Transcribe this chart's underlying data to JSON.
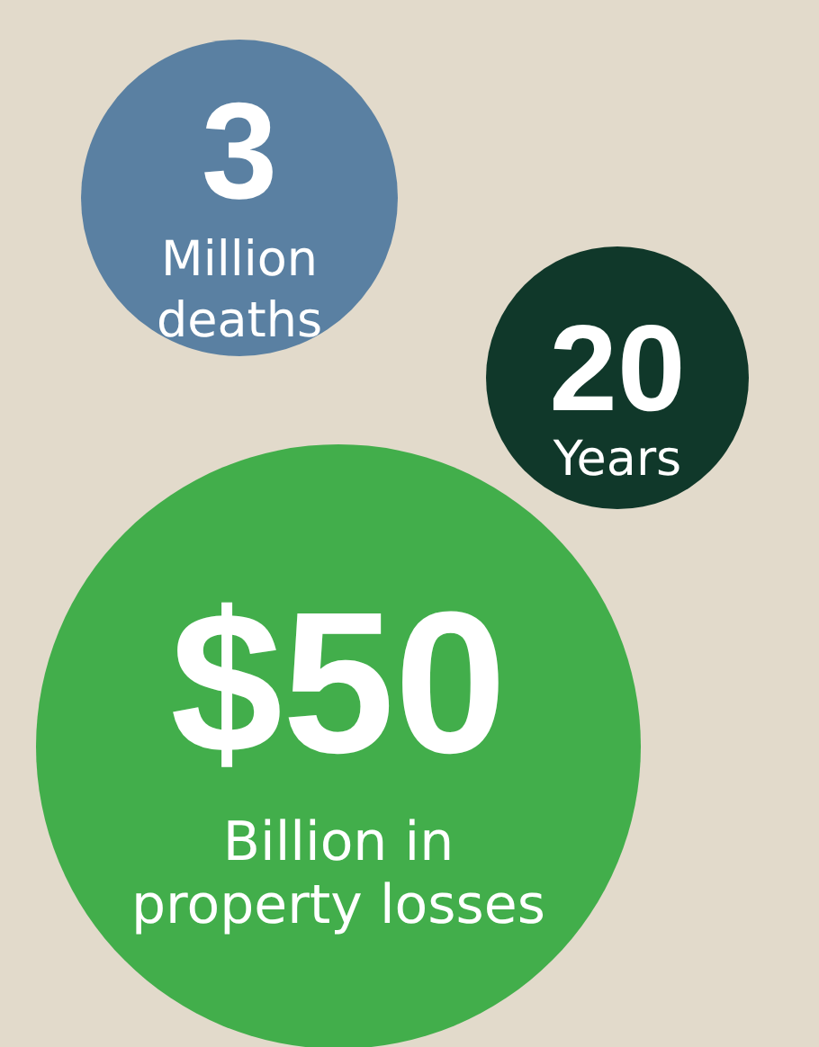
{
  "chart_data": {
    "type": "other",
    "categories": [
      "Million\ndeaths",
      "Years",
      "Billion in\nproperty losses"
    ],
    "values": [
      3,
      20,
      50
    ],
    "value_labels": [
      "3",
      "20",
      "$50"
    ],
    "colors": [
      "#5a80a2",
      "#10382a",
      "#42ae4b"
    ]
  }
}
